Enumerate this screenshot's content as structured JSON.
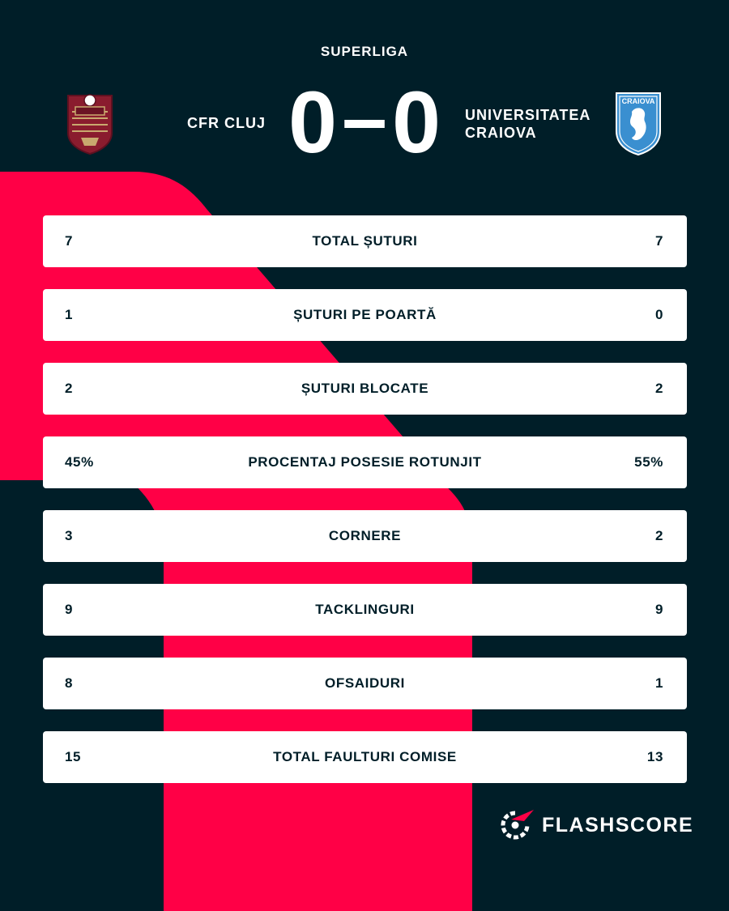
{
  "league": "SUPERLIGA",
  "home": {
    "name": "CFR CLUJ",
    "logo_icon": "cfr-cluj-crest-icon",
    "score": "0"
  },
  "away": {
    "name": "UNIVERSITATEA\nCRAIOVA",
    "logo_icon": "universitatea-craiova-crest-icon",
    "logo_text": "CRAIOVA",
    "score": "0"
  },
  "score_separator": "–",
  "stats": [
    {
      "label": "TOTAL ȘUTURI",
      "home": "7",
      "away": "7"
    },
    {
      "label": "ȘUTURI PE POARTĂ",
      "home": "1",
      "away": "0"
    },
    {
      "label": "ȘUTURI BLOCATE",
      "home": "2",
      "away": "2"
    },
    {
      "label": "PROCENTAJ POSESIE ROTUNJIT",
      "home": "45%",
      "away": "55%"
    },
    {
      "label": "CORNERE",
      "home": "3",
      "away": "2"
    },
    {
      "label": "TACKLINGURI",
      "home": "9",
      "away": "9"
    },
    {
      "label": "OFSAIDURI",
      "home": "8",
      "away": "1"
    },
    {
      "label": "TOTAL FAULTURI COMISE",
      "home": "15",
      "away": "13"
    }
  ],
  "brand": {
    "name": "FLASHSCORE",
    "icon": "flashscore-logo-icon"
  },
  "colors": {
    "background": "#001e28",
    "accent": "#ff0046",
    "card": "#ffffff",
    "text_dark": "#001e28",
    "cfr_maroon": "#8a1c2e",
    "craiova_blue": "#3a8fd0"
  }
}
